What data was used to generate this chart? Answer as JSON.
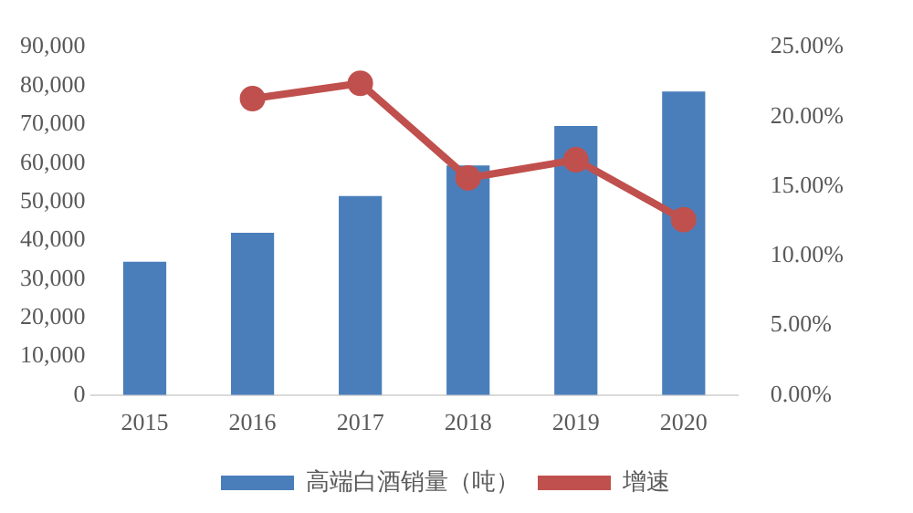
{
  "chart_data": {
    "type": "bar",
    "categories": [
      "2015",
      "2016",
      "2017",
      "2018",
      "2019",
      "2020"
    ],
    "series": [
      {
        "name": "高端白酒销量（吨）",
        "color": "#4a7ebb",
        "values": [
          34500,
          42000,
          51500,
          59400,
          69600,
          78500
        ]
      },
      {
        "name": "增速",
        "type": "line",
        "axis": "y2",
        "color": "#c0504d",
        "values": [
          null,
          21.3,
          22.4,
          15.6,
          16.9,
          12.6
        ]
      }
    ],
    "ylim": [
      0,
      90000
    ],
    "yticks": [
      {
        "value": 0,
        "label": "0"
      },
      {
        "value": 10000,
        "label": "10,000"
      },
      {
        "value": 20000,
        "label": "20,000"
      },
      {
        "value": 30000,
        "label": "30,000"
      },
      {
        "value": 40000,
        "label": "40,000"
      },
      {
        "value": 50000,
        "label": "50,000"
      },
      {
        "value": 60000,
        "label": "60,000"
      },
      {
        "value": 70000,
        "label": "70,000"
      },
      {
        "value": 80000,
        "label": "80,000"
      },
      {
        "value": 90000,
        "label": "90,000"
      }
    ],
    "y2lim": [
      0,
      25
    ],
    "y2ticks": [
      {
        "value": 0,
        "label": "0.00%"
      },
      {
        "value": 5,
        "label": "5.00%"
      },
      {
        "value": 10,
        "label": "10.00%"
      },
      {
        "value": 15,
        "label": "15.00%"
      },
      {
        "value": 20,
        "label": "20.00%"
      },
      {
        "value": 25,
        "label": "25.00%"
      }
    ],
    "grid": false,
    "legend": "bottom",
    "marker": "circle"
  }
}
